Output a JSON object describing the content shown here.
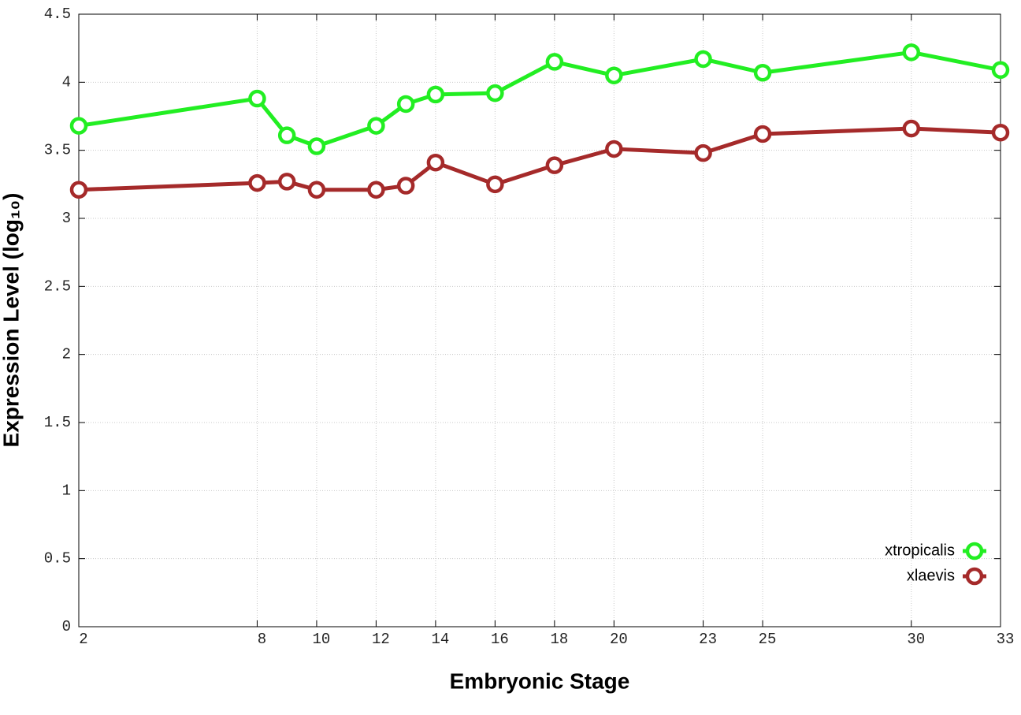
{
  "chart_data": {
    "type": "line",
    "xlabel": "Embryonic Stage",
    "ylabel": "Expression Level (log₁₀)",
    "x": [
      2,
      8,
      9,
      10,
      12,
      13,
      14,
      16,
      18,
      20,
      23,
      25,
      30,
      33
    ],
    "series": [
      {
        "name": "xtropicalis",
        "color": "#22ee22",
        "values": [
          3.68,
          3.88,
          3.61,
          3.53,
          3.68,
          3.84,
          3.91,
          3.92,
          4.15,
          4.05,
          4.17,
          4.07,
          4.22,
          4.09
        ]
      },
      {
        "name": "xlaevis",
        "color": "#a52a2a",
        "values": [
          3.21,
          3.26,
          3.27,
          3.21,
          3.21,
          3.24,
          3.41,
          3.25,
          3.39,
          3.51,
          3.48,
          3.62,
          3.66,
          3.63
        ]
      }
    ],
    "xlim": [
      2,
      33
    ],
    "xticks": [
      2,
      8,
      10,
      12,
      14,
      16,
      18,
      20,
      23,
      25,
      30,
      33
    ],
    "ylim": [
      0,
      4.5
    ],
    "yticks": [
      0,
      0.5,
      1,
      1.5,
      2,
      2.5,
      3,
      3.5,
      4,
      4.5
    ],
    "grid": true,
    "legend": "lower right"
  }
}
